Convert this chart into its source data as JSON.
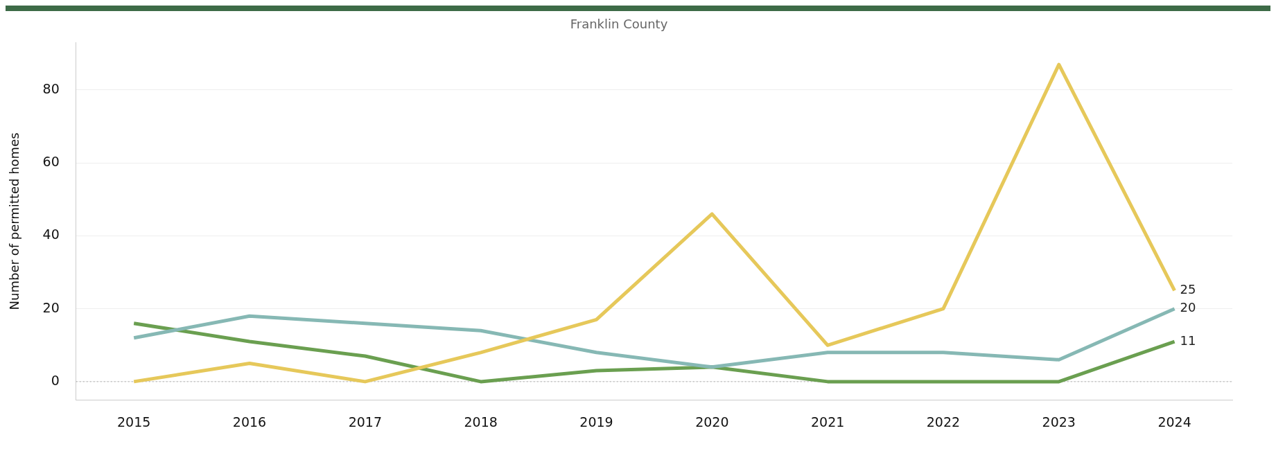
{
  "chart_data": {
    "type": "line",
    "title": "Franklin County",
    "ylabel": "Number of permitted homes",
    "categories": [
      "2015",
      "2016",
      "2017",
      "2018",
      "2019",
      "2020",
      "2021",
      "2022",
      "2023",
      "2024"
    ],
    "series": [
      {
        "color": "#e6c85a",
        "values": [
          0,
          5,
          0,
          8,
          17,
          46,
          10,
          20,
          87,
          25
        ],
        "value_labels": [
          null,
          null,
          null,
          null,
          null,
          null,
          null,
          null,
          null,
          "25"
        ]
      },
      {
        "color": "#86b8b4",
        "values": [
          12,
          18,
          16,
          14,
          8,
          4,
          8,
          8,
          6,
          20
        ],
        "value_labels": [
          null,
          null,
          null,
          null,
          null,
          null,
          null,
          null,
          null,
          "20"
        ]
      },
      {
        "color": "#6a9f50",
        "values": [
          16,
          11,
          7,
          0,
          3,
          4,
          0,
          0,
          0,
          11
        ],
        "value_labels": [
          null,
          null,
          null,
          null,
          null,
          null,
          null,
          null,
          null,
          "11"
        ]
      }
    ],
    "ylim": [
      -5,
      93
    ],
    "yticks": [
      0,
      20,
      40,
      60,
      80
    ],
    "grid": "y",
    "legend": false,
    "marker": "none",
    "line_style": "solid",
    "ref_lines": [
      {
        "axis": "y",
        "value": 0,
        "line_style": "dotted",
        "color": "#aaaaaa"
      }
    ]
  }
}
